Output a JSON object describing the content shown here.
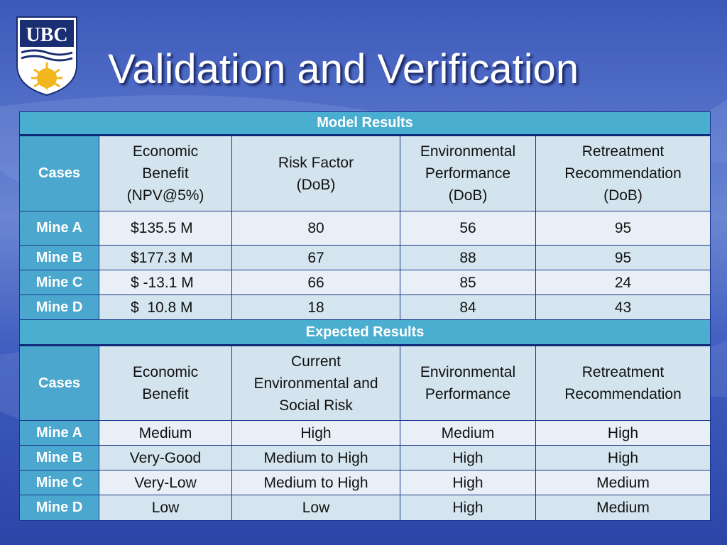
{
  "logo": {
    "text": "UBC"
  },
  "title": "Validation and Verification",
  "table": {
    "sections": [
      {
        "heading": "Model Results",
        "header": [
          [
            "Cases"
          ],
          [
            "Economic",
            "Benefit",
            "(NPV@5%)"
          ],
          [
            "Risk Factor",
            "(DoB)"
          ],
          [
            "Environmental",
            "Performance",
            "(DoB)"
          ],
          [
            "Retreatment",
            "Recommendation",
            "(DoB)"
          ]
        ],
        "rows": [
          [
            "Mine A",
            "$135.5 M",
            "80",
            "56",
            "95"
          ],
          [
            "Mine B",
            "$177.3 M",
            "67",
            "88",
            "95"
          ],
          [
            "Mine C",
            "$ -13.1 M",
            "66",
            "85",
            "24"
          ],
          [
            "Mine D",
            "$  10.8 M",
            "18",
            "84",
            "43"
          ]
        ]
      },
      {
        "heading": "Expected Results",
        "header": [
          [
            "Cases"
          ],
          [
            "Economic",
            "Benefit"
          ],
          [
            "Current",
            "Environmental and",
            "Social Risk"
          ],
          [
            "Environmental",
            "Performance"
          ],
          [
            "Retreatment",
            "Recommendation"
          ]
        ],
        "rows": [
          [
            "Mine A",
            "Medium",
            "High",
            "Medium",
            "High"
          ],
          [
            "Mine B",
            "Very-Good",
            "Medium to High",
            "High",
            "High"
          ],
          [
            "Mine C",
            "Very-Low",
            "Medium to High",
            "High",
            "Medium"
          ],
          [
            "Mine D",
            "Low",
            "Low",
            "High",
            "Medium"
          ]
        ]
      }
    ]
  }
}
